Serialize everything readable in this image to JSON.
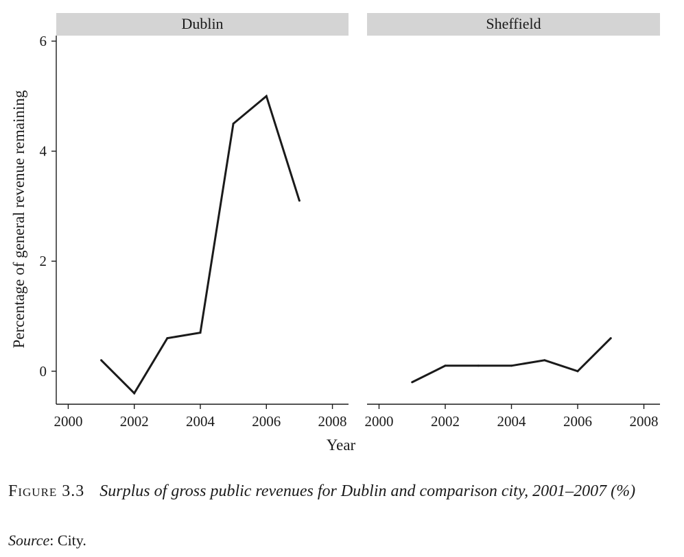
{
  "chart_data": {
    "type": "line",
    "xlabel": "Year",
    "ylabel": "Percentage of general revenue remaining",
    "xlim": [
      1999.7,
      2008.3
    ],
    "ylim": [
      -0.6,
      6.1
    ],
    "xticks": [
      2000,
      2002,
      2004,
      2006,
      2008
    ],
    "yticks": [
      0,
      2,
      4,
      6
    ],
    "grid": false,
    "line_color": "#1a1a1a",
    "strip_color": "#d4d4d4",
    "panels": [
      {
        "title": "Dublin",
        "x": [
          2001,
          2002,
          2003,
          2004,
          2005,
          2006,
          2007
        ],
        "y": [
          0.2,
          -0.4,
          0.6,
          0.7,
          4.5,
          5.0,
          3.1
        ]
      },
      {
        "title": "Sheffield",
        "x": [
          2001,
          2002,
          2003,
          2004,
          2005,
          2006,
          2007
        ],
        "y": [
          -0.2,
          0.1,
          0.1,
          0.1,
          0.2,
          0.0,
          0.6
        ]
      }
    ]
  },
  "caption": {
    "label": "Figure 3.3",
    "text": "Surplus of gross public revenues for Dublin and comparison city, 2001–2007 (%)"
  },
  "source": {
    "label": "Source",
    "text": ": City."
  }
}
